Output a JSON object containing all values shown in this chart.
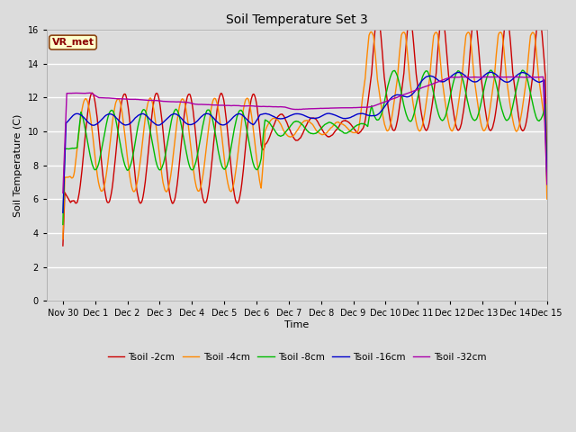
{
  "title": "Soil Temperature Set 3",
  "xlabel": "Time",
  "ylabel": "Soil Temperature (C)",
  "ylim": [
    0,
    16
  ],
  "yticks": [
    0,
    2,
    4,
    6,
    8,
    10,
    12,
    14,
    16
  ],
  "bg_color": "#dcdcdc",
  "vr_met_label": "VR_met",
  "legend_entries": [
    "Tsoil -2cm",
    "Tsoil -4cm",
    "Tsoil -8cm",
    "Tsoil -16cm",
    "Tsoil -32cm"
  ],
  "colors": {
    "t2": "#cc0000",
    "t4": "#ff8800",
    "t8": "#00bb00",
    "t16": "#0000cc",
    "t32": "#aa00aa"
  },
  "lw": 1.0,
  "x_tick_labels": [
    "Nov 30",
    "Dec 1",
    "Dec 2",
    "Dec 3",
    "Dec 4",
    "Dec 5",
    "Dec 6",
    "Dec 7",
    "Dec 8",
    "Dec 9",
    "Dec 10",
    "Dec 11",
    "Dec 12",
    "Dec 13",
    "Dec 14",
    "Dec 15"
  ]
}
